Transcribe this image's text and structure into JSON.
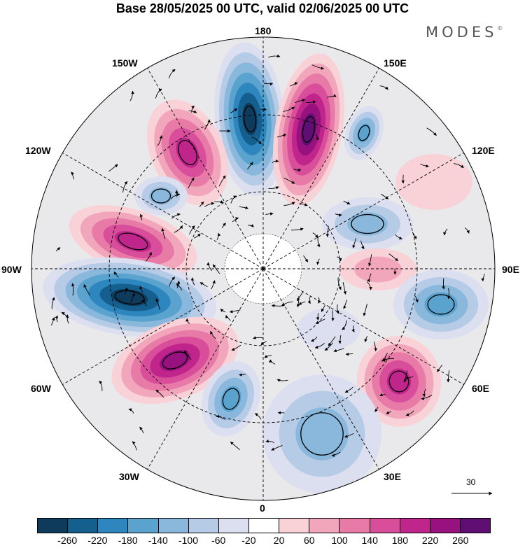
{
  "title": "Base 28/05/2025 00 UTC, valid 02/06/2025 00 UTC",
  "brand": "MODES",
  "brand_mark": "©",
  "longitude_labels": {
    "lon_180": "180",
    "lon_150e": "150E",
    "lon_120e": "120E",
    "lon_90e": "90E",
    "lon_60e": "60E",
    "lon_30e": "30E",
    "lon_0": "0",
    "lon_30w": "30W",
    "lon_60w": "60W",
    "lon_90w": "90W",
    "lon_120w": "120W",
    "lon_150w": "150W"
  },
  "vector_scale_label": "30",
  "colorbar": {
    "colors": [
      "#0e3a5c",
      "#155f8f",
      "#2e86bf",
      "#5aa3cf",
      "#8ab8dc",
      "#b6cbe6",
      "#dcdfef",
      "#ffffff",
      "#f9d2d8",
      "#f1a6bb",
      "#e87aa8",
      "#d94e9a",
      "#c0258b",
      "#97117f",
      "#5f0f73"
    ],
    "ticks": [
      "-260",
      "-220",
      "-180",
      "-140",
      "-100",
      "-60",
      "-20",
      "20",
      "60",
      "100",
      "140",
      "180",
      "220",
      "260"
    ]
  },
  "colors": {
    "map_background": "#e9e9ec",
    "graticule": "#000000"
  }
}
